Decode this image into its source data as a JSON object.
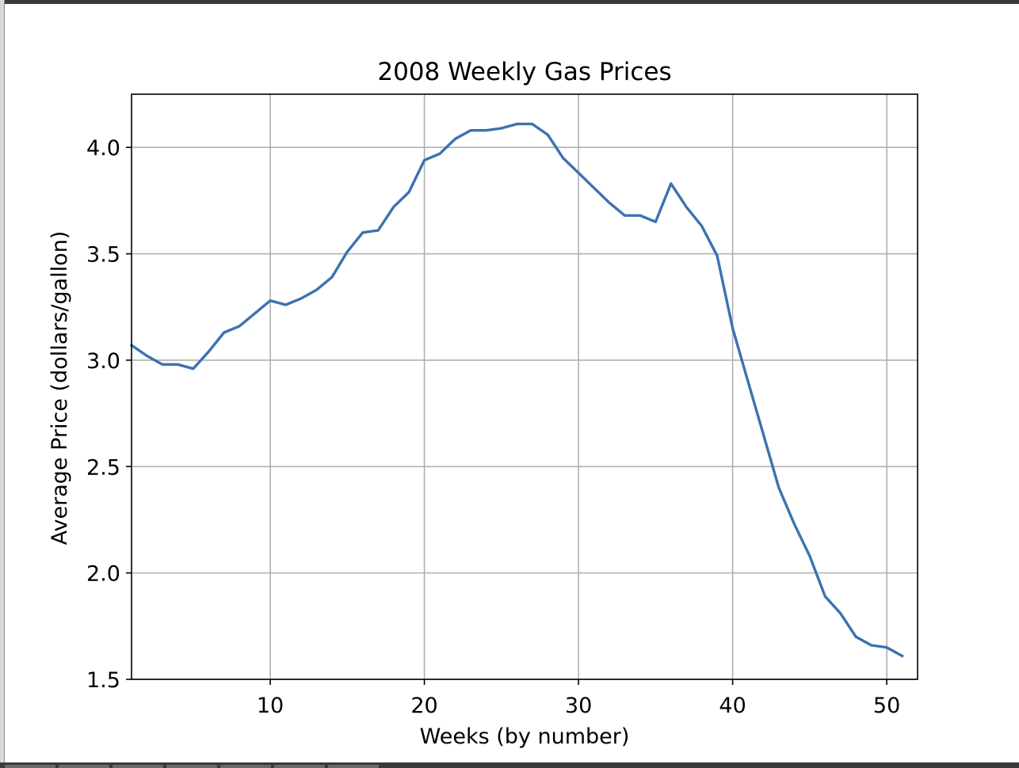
{
  "chart_data": {
    "type": "line",
    "title": "2008 Weekly Gas Prices",
    "xlabel": "Weeks (by number)",
    "ylabel": "Average Price (dollars/gallon)",
    "xlim": [
      1,
      52
    ],
    "ylim": [
      1.5,
      4.25
    ],
    "xticks": [
      10,
      20,
      30,
      40,
      50
    ],
    "xtick_labels": [
      "10",
      "20",
      "30",
      "40",
      "50"
    ],
    "yticks": [
      1.5,
      2.0,
      2.5,
      3.0,
      3.5,
      4.0
    ],
    "ytick_labels": [
      "1.5",
      "2.0",
      "2.5",
      "3.0",
      "3.5",
      "4.0"
    ],
    "grid": true,
    "series": [
      {
        "color": "#3c72b0",
        "x": [
          1,
          2,
          3,
          4,
          5,
          6,
          7,
          8,
          9,
          10,
          11,
          12,
          13,
          14,
          15,
          16,
          17,
          18,
          19,
          20,
          21,
          22,
          23,
          24,
          25,
          26,
          27,
          28,
          29,
          30,
          31,
          32,
          33,
          34,
          35,
          36,
          37,
          38,
          39,
          40,
          41,
          42,
          43,
          44,
          45,
          46,
          47,
          48,
          49,
          50,
          51
        ],
        "y": [
          3.07,
          3.02,
          2.98,
          2.98,
          2.96,
          3.04,
          3.13,
          3.16,
          3.22,
          3.28,
          3.26,
          3.29,
          3.33,
          3.39,
          3.51,
          3.6,
          3.61,
          3.72,
          3.79,
          3.94,
          3.97,
          4.04,
          4.08,
          4.08,
          4.09,
          4.11,
          4.11,
          4.06,
          3.95,
          3.88,
          3.81,
          3.74,
          3.68,
          3.68,
          3.65,
          3.83,
          3.72,
          3.63,
          3.49,
          3.15,
          2.9,
          2.65,
          2.4,
          2.23,
          2.08,
          1.89,
          1.81,
          1.7,
          1.66,
          1.65,
          1.61
        ]
      }
    ]
  }
}
